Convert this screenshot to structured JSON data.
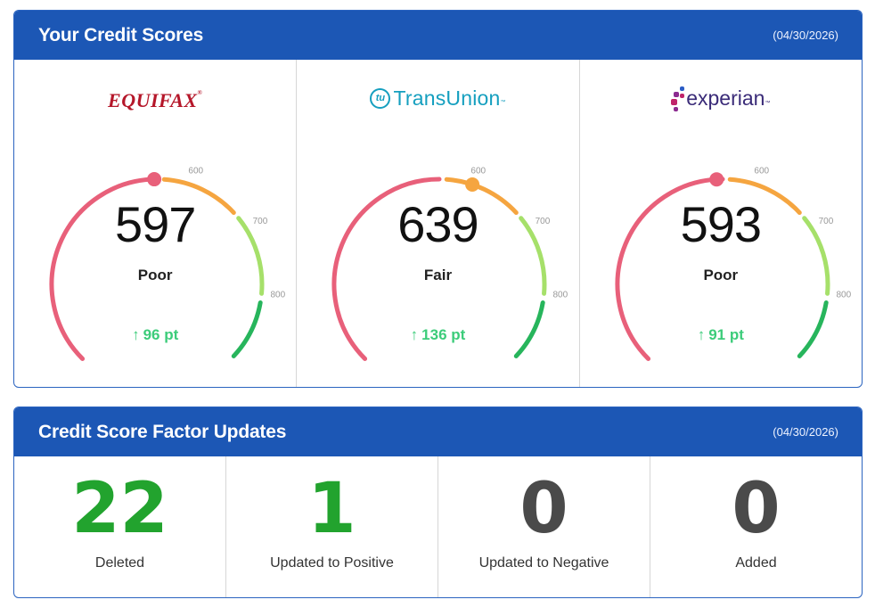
{
  "scores_panel": {
    "title": "Your Credit Scores",
    "date": "(04/30/2026)",
    "bureaus": [
      {
        "logo_text": "EQUIFAX",
        "logo_mark": "®",
        "score": "597",
        "rating": "Poor",
        "change_arrow": "↑",
        "change": "96 pt",
        "marker_color": "#e8607a"
      },
      {
        "logo_badge": "tu",
        "logo_text": "TransUnion",
        "logo_mark": "™",
        "score": "639",
        "rating": "Fair",
        "change_arrow": "↑",
        "change": "136 pt",
        "marker_color": "#f5a540"
      },
      {
        "logo_text": "experian",
        "logo_mark": "™",
        "score": "593",
        "rating": "Poor",
        "change_arrow": "↑",
        "change": "91 pt",
        "marker_color": "#e8607a"
      }
    ],
    "gauge": {
      "tick_labels": [
        "600",
        "700",
        "800"
      ],
      "segment_colors": [
        "#e8607a",
        "#f5a540",
        "#a6e06a",
        "#27b55c"
      ]
    }
  },
  "factors_panel": {
    "title": "Credit Score Factor Updates",
    "date": "(04/30/2026)",
    "items": [
      {
        "count": "22",
        "label": "Deleted",
        "color": "#22a32e"
      },
      {
        "count": "1",
        "label": "Updated to Positive",
        "color": "#22a32e"
      },
      {
        "count": "0",
        "label": "Updated to Negative",
        "color": "#4a4a4a"
      },
      {
        "count": "0",
        "label": "Added",
        "color": "#4a4a4a"
      }
    ]
  }
}
